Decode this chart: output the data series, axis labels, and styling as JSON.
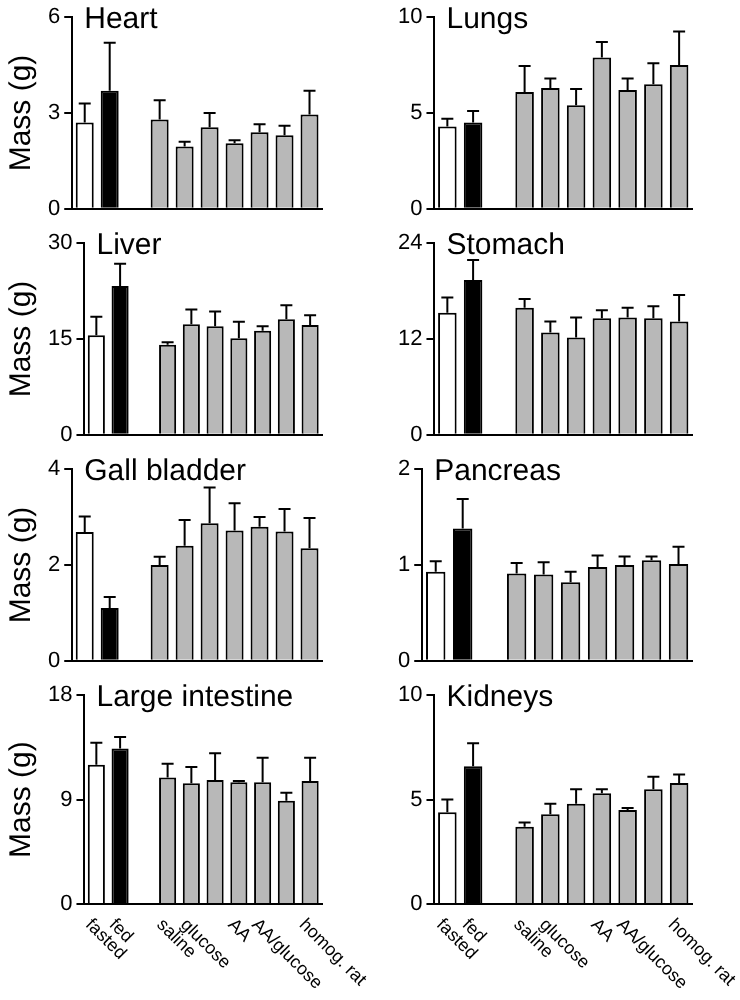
{
  "chart_data": [
    {
      "type": "bar",
      "title": "Heart",
      "ylabel": "Mass (g)",
      "categories": [
        null,
        null,
        null,
        null,
        null,
        null,
        null,
        null,
        null,
        null
      ],
      "values": [
        2.7,
        3.7,
        null,
        2.8,
        1.95,
        2.55,
        2.05,
        2.4,
        2.3,
        2.95
      ],
      "errors": [
        0.6,
        1.5,
        null,
        0.6,
        0.15,
        0.45,
        0.1,
        0.25,
        0.3,
        0.75
      ],
      "colors": [
        "#ffffff",
        "#000000",
        null,
        "#b8b8b8",
        "#b8b8b8",
        "#b8b8b8",
        "#b8b8b8",
        "#b8b8b8",
        "#b8b8b8",
        "#b8b8b8"
      ],
      "ylim": [
        0,
        6
      ],
      "yticks": [
        0,
        3,
        6
      ],
      "grid": false
    },
    {
      "type": "bar",
      "title": "Lungs",
      "categories": [
        null,
        null,
        null,
        null,
        null,
        null,
        null,
        null,
        null,
        null
      ],
      "values": [
        4.3,
        4.5,
        null,
        6.1,
        6.3,
        5.4,
        7.9,
        6.2,
        6.5,
        7.5
      ],
      "errors": [
        0.4,
        0.6,
        null,
        1.35,
        0.5,
        0.85,
        0.8,
        0.6,
        1.1,
        1.75
      ],
      "colors": [
        "#ffffff",
        "#000000",
        null,
        "#b8b8b8",
        "#b8b8b8",
        "#b8b8b8",
        "#b8b8b8",
        "#b8b8b8",
        "#b8b8b8",
        "#b8b8b8"
      ],
      "ylim": [
        0,
        10
      ],
      "yticks": [
        0,
        5,
        10
      ],
      "grid": false
    },
    {
      "type": "bar",
      "title": "Liver",
      "ylabel": "Mass (g)",
      "categories": [
        null,
        null,
        null,
        null,
        null,
        null,
        null,
        null,
        null,
        null
      ],
      "values": [
        15.6,
        23.3,
        null,
        14.1,
        17.3,
        17.0,
        15.1,
        16.3,
        18.1,
        17.2
      ],
      "errors": [
        2.9,
        3.5,
        null,
        0.4,
        2.3,
        2.3,
        2.6,
        0.7,
        2.2,
        1.5
      ],
      "colors": [
        "#ffffff",
        "#000000",
        null,
        "#b8b8b8",
        "#b8b8b8",
        "#b8b8b8",
        "#b8b8b8",
        "#b8b8b8",
        "#b8b8b8",
        "#b8b8b8"
      ],
      "ylim": [
        0,
        30
      ],
      "yticks": [
        0,
        15,
        30
      ],
      "grid": false
    },
    {
      "type": "bar",
      "title": "Stomach",
      "categories": [
        null,
        null,
        null,
        null,
        null,
        null,
        null,
        null,
        null,
        null
      ],
      "values": [
        15.3,
        19.4,
        null,
        15.9,
        12.8,
        12.2,
        14.6,
        14.7,
        14.6,
        14.2
      ],
      "errors": [
        1.9,
        2.5,
        null,
        1.1,
        1.4,
        2.5,
        1.0,
        1.2,
        1.5,
        3.3
      ],
      "colors": [
        "#ffffff",
        "#000000",
        null,
        "#b8b8b8",
        "#b8b8b8",
        "#b8b8b8",
        "#b8b8b8",
        "#b8b8b8",
        "#b8b8b8",
        "#b8b8b8"
      ],
      "ylim": [
        0,
        24
      ],
      "yticks": [
        0,
        12,
        24
      ],
      "grid": false
    },
    {
      "type": "bar",
      "title": "Gall bladder",
      "ylabel": "Mass (g)",
      "categories": [
        null,
        null,
        null,
        null,
        null,
        null,
        null,
        null,
        null,
        null
      ],
      "values": [
        2.69,
        1.1,
        null,
        2.0,
        2.4,
        2.87,
        2.72,
        2.8,
        2.7,
        2.35
      ],
      "errors": [
        0.32,
        0.23,
        null,
        0.17,
        0.54,
        0.75,
        0.57,
        0.2,
        0.47,
        0.63
      ],
      "colors": [
        "#ffffff",
        "#000000",
        null,
        "#b8b8b8",
        "#b8b8b8",
        "#b8b8b8",
        "#b8b8b8",
        "#b8b8b8",
        "#b8b8b8",
        "#b8b8b8"
      ],
      "ylim": [
        0,
        4
      ],
      "yticks": [
        0,
        2,
        4
      ],
      "grid": false
    },
    {
      "type": "bar",
      "title": "Pancreas",
      "categories": [
        null,
        null,
        null,
        null,
        null,
        null,
        null,
        null,
        null,
        null
      ],
      "values": [
        0.93,
        1.38,
        null,
        0.91,
        0.9,
        0.82,
        0.98,
        1.0,
        1.05,
        1.01
      ],
      "errors": [
        0.11,
        0.31,
        null,
        0.11,
        0.13,
        0.11,
        0.12,
        0.09,
        0.04,
        0.18
      ],
      "colors": [
        "#ffffff",
        "#000000",
        null,
        "#b8b8b8",
        "#b8b8b8",
        "#b8b8b8",
        "#b8b8b8",
        "#b8b8b8",
        "#b8b8b8",
        "#b8b8b8"
      ],
      "ylim": [
        0,
        2
      ],
      "yticks": [
        0,
        1,
        2
      ],
      "grid": false
    },
    {
      "type": "bar",
      "title": "Large intestine",
      "ylabel": "Mass (g)",
      "categories": [
        "fasted",
        "fed",
        null,
        "saline",
        "glucose",
        null,
        "AA",
        "AA/glucose",
        null,
        "homog. rat"
      ],
      "values": [
        12.0,
        13.4,
        null,
        10.9,
        10.4,
        10.7,
        10.5,
        10.5,
        8.9,
        10.6
      ],
      "errors": [
        1.9,
        1.0,
        null,
        1.2,
        1.4,
        2.3,
        0.1,
        2.1,
        0.7,
        2.0
      ],
      "colors": [
        "#ffffff",
        "#000000",
        null,
        "#b8b8b8",
        "#b8b8b8",
        "#b8b8b8",
        "#b8b8b8",
        "#b8b8b8",
        "#b8b8b8",
        "#b8b8b8"
      ],
      "ylim": [
        0,
        18
      ],
      "yticks": [
        0,
        9,
        18
      ],
      "grid": false
    },
    {
      "type": "bar",
      "title": "Kidneys",
      "categories": [
        "fasted",
        "fed",
        null,
        "saline",
        "glucose",
        null,
        "AA",
        "AA/glucose",
        null,
        "homog. rat"
      ],
      "values": [
        4.4,
        6.6,
        null,
        3.7,
        4.3,
        4.8,
        5.3,
        4.5,
        5.5,
        5.8
      ],
      "errors": [
        0.6,
        1.1,
        null,
        0.2,
        0.5,
        0.7,
        0.2,
        0.1,
        0.6,
        0.4
      ],
      "colors": [
        "#ffffff",
        "#000000",
        null,
        "#b8b8b8",
        "#b8b8b8",
        "#b8b8b8",
        "#b8b8b8",
        "#b8b8b8",
        "#b8b8b8",
        "#b8b8b8"
      ],
      "ylim": [
        0,
        10
      ],
      "yticks": [
        0,
        5,
        10
      ],
      "grid": false
    }
  ]
}
